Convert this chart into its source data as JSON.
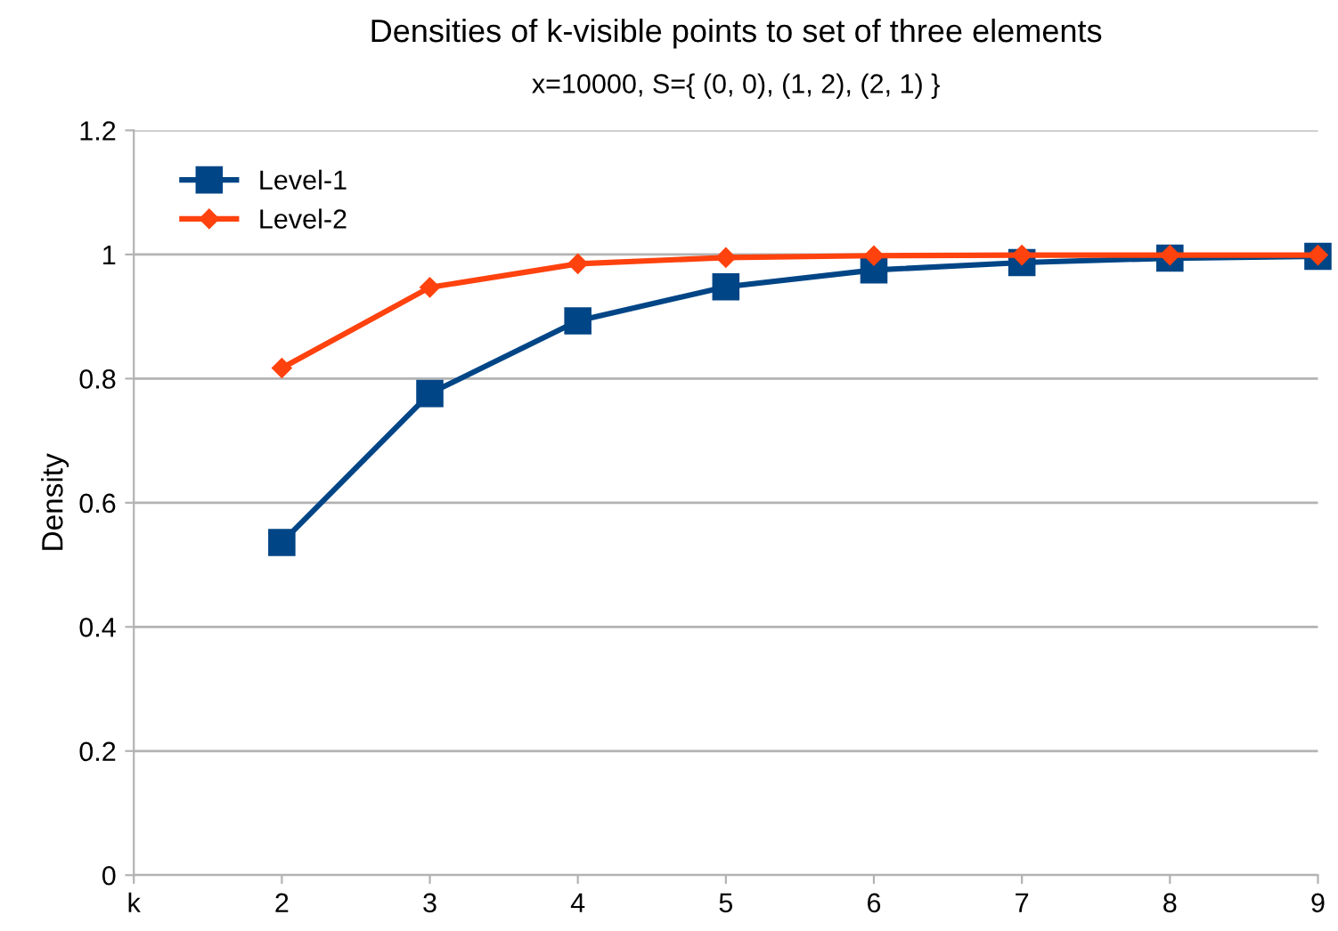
{
  "chart_data": {
    "type": "line",
    "title": "Densities of k-visible points to set of three elements",
    "subtitle": "x=10000, S={ (0, 0), (1, 2), (2, 1) }",
    "ylabel": "Density",
    "x": [
      2,
      3,
      4,
      5,
      6,
      7,
      8,
      9
    ],
    "series": [
      {
        "name": "Level-1",
        "color": "#004586",
        "marker": "square",
        "values": [
          0.536,
          0.776,
          0.893,
          0.948,
          0.975,
          0.987,
          0.994,
          0.997
        ]
      },
      {
        "name": "Level-2",
        "color": "#ff420e",
        "marker": "diamond",
        "values": [
          0.817,
          0.947,
          0.985,
          0.995,
          0.998,
          0.999,
          0.999,
          0.999
        ]
      }
    ],
    "xlim": [
      1,
      9
    ],
    "xticks": [
      {
        "value": 1,
        "label": "k"
      },
      2,
      3,
      4,
      5,
      6,
      7,
      8,
      9
    ],
    "ylim": [
      0,
      1.2
    ],
    "yticks": [
      0,
      0.2,
      0.4,
      0.6,
      0.8,
      1,
      1.2
    ],
    "grid": "y",
    "legend": "top left",
    "line_style": "solid"
  }
}
